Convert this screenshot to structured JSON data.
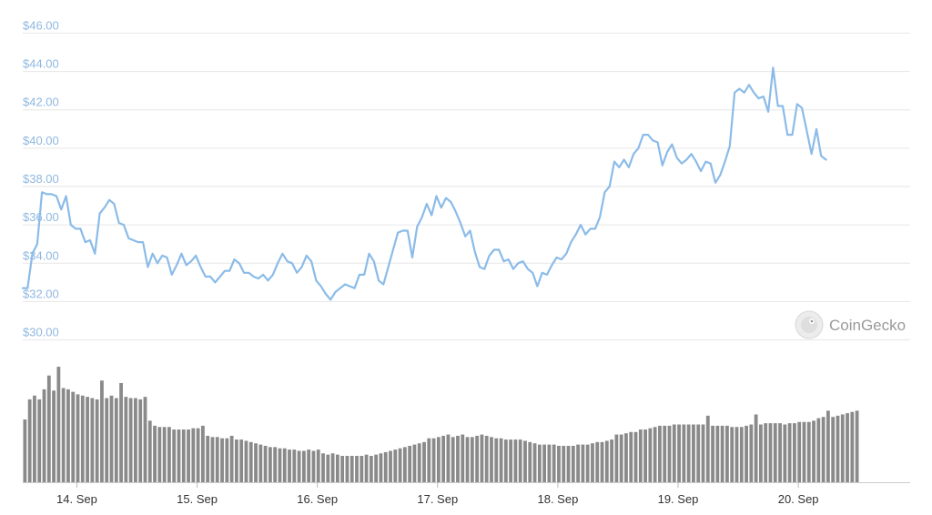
{
  "chart_data": {
    "type": "line",
    "colors": {
      "price_line": "#8bbbe8",
      "volume_bar": "#8a8a8a",
      "grid": "#e6e6e6",
      "y_ticks": "#8fb8e0"
    },
    "y_ticks": [
      "$30.00",
      "$32.00",
      "$34.00",
      "$36.00",
      "$38.00",
      "$40.00",
      "$42.00",
      "$44.00",
      "$46.00"
    ],
    "y_tick_values": [
      30,
      32,
      34,
      36,
      38,
      40,
      42,
      44,
      46
    ],
    "ylim": [
      29.6,
      46.4
    ],
    "xlim": [
      0,
      7.38
    ],
    "x_ticks": [
      "14. Sep",
      "15. Sep",
      "16. Sep",
      "17. Sep",
      "18. Sep",
      "19. Sep",
      "20. Sep"
    ],
    "x_tick_values": [
      0.45,
      1.45,
      2.45,
      3.45,
      4.45,
      5.45,
      6.45
    ],
    "series": [
      {
        "type": "line",
        "x_step": 0.04,
        "y": [
          32.7,
          32.7,
          34.5,
          35.0,
          37.7,
          37.6,
          37.6,
          37.5,
          36.8,
          37.5,
          36.0,
          35.8,
          35.8,
          35.1,
          35.2,
          34.5,
          36.6,
          36.9,
          37.3,
          37.1,
          36.1,
          36.0,
          35.3,
          35.2,
          35.1,
          35.1,
          33.8,
          34.5,
          34.0,
          34.4,
          34.3,
          33.4,
          33.9,
          34.5,
          33.9,
          34.1,
          34.4,
          33.8,
          33.3,
          33.3,
          33.0,
          33.3,
          33.6,
          33.6,
          34.2,
          34.0,
          33.5,
          33.5,
          33.3,
          33.2,
          33.4,
          33.1,
          33.4,
          34.0,
          34.5,
          34.1,
          34.0,
          33.5,
          33.8,
          34.4,
          34.1,
          33.1,
          32.8,
          32.4,
          32.1,
          32.5,
          32.7,
          32.9,
          32.8,
          32.7,
          33.4,
          33.4,
          34.5,
          34.1,
          33.1,
          32.9,
          33.8,
          34.7,
          35.6,
          35.7,
          35.7,
          34.3,
          35.9,
          36.4,
          37.1,
          36.5,
          37.5,
          36.9,
          37.4,
          37.2,
          36.7,
          36.1,
          35.4,
          35.7,
          34.6,
          33.8,
          33.7,
          34.4,
          34.7,
          34.7,
          34.1,
          34.2,
          33.7,
          34.0,
          34.1,
          33.7,
          33.5,
          32.8,
          33.5,
          33.4,
          33.9,
          34.3,
          34.2,
          34.5,
          35.1,
          35.5,
          36.0,
          35.5,
          35.8,
          35.8,
          36.4,
          37.7,
          38.0,
          39.3,
          39.0,
          39.4,
          39.0,
          39.7,
          40.0,
          40.7,
          40.7,
          40.4,
          40.3,
          39.1,
          39.8,
          40.2,
          39.5,
          39.2,
          39.4,
          39.7,
          39.3,
          38.8,
          39.3,
          39.2,
          38.2,
          38.6,
          39.3,
          40.1,
          42.9,
          43.1,
          42.9,
          43.3,
          42.9,
          42.6,
          42.7,
          41.9,
          44.2,
          42.2,
          42.2,
          40.7,
          40.7,
          42.3,
          42.1,
          40.9,
          39.7,
          41.0,
          39.6,
          39.4
        ]
      },
      {
        "type": "bar",
        "x_start": 0.018,
        "x_step": 0.04,
        "ylim": [
          0,
          1
        ],
        "values": [
          0.5,
          0.66,
          0.69,
          0.66,
          0.74,
          0.85,
          0.73,
          0.92,
          0.75,
          0.74,
          0.72,
          0.7,
          0.69,
          0.68,
          0.67,
          0.66,
          0.81,
          0.67,
          0.69,
          0.67,
          0.79,
          0.68,
          0.67,
          0.67,
          0.66,
          0.68,
          0.49,
          0.45,
          0.44,
          0.44,
          0.44,
          0.42,
          0.42,
          0.42,
          0.42,
          0.43,
          0.43,
          0.45,
          0.37,
          0.36,
          0.36,
          0.35,
          0.35,
          0.37,
          0.34,
          0.34,
          0.33,
          0.32,
          0.31,
          0.3,
          0.29,
          0.28,
          0.28,
          0.27,
          0.27,
          0.26,
          0.26,
          0.25,
          0.25,
          0.26,
          0.25,
          0.26,
          0.23,
          0.22,
          0.23,
          0.22,
          0.21,
          0.21,
          0.21,
          0.21,
          0.21,
          0.22,
          0.21,
          0.22,
          0.23,
          0.24,
          0.25,
          0.26,
          0.27,
          0.28,
          0.29,
          0.3,
          0.31,
          0.32,
          0.35,
          0.35,
          0.36,
          0.37,
          0.38,
          0.36,
          0.37,
          0.38,
          0.36,
          0.36,
          0.37,
          0.38,
          0.37,
          0.36,
          0.35,
          0.35,
          0.34,
          0.34,
          0.34,
          0.34,
          0.33,
          0.32,
          0.31,
          0.3,
          0.3,
          0.3,
          0.3,
          0.29,
          0.29,
          0.29,
          0.29,
          0.3,
          0.3,
          0.3,
          0.31,
          0.32,
          0.32,
          0.33,
          0.34,
          0.38,
          0.38,
          0.39,
          0.4,
          0.4,
          0.42,
          0.42,
          0.43,
          0.44,
          0.45,
          0.45,
          0.45,
          0.46,
          0.46,
          0.46,
          0.46,
          0.46,
          0.46,
          0.46,
          0.53,
          0.45,
          0.45,
          0.45,
          0.45,
          0.44,
          0.44,
          0.44,
          0.45,
          0.46,
          0.54,
          0.46,
          0.47,
          0.47,
          0.47,
          0.47,
          0.46,
          0.47,
          0.47,
          0.48,
          0.48,
          0.48,
          0.49,
          0.51,
          0.52,
          0.57,
          0.52,
          0.53,
          0.54,
          0.55,
          0.56,
          0.57
        ]
      }
    ]
  },
  "watermark": {
    "label": "CoinGecko"
  }
}
